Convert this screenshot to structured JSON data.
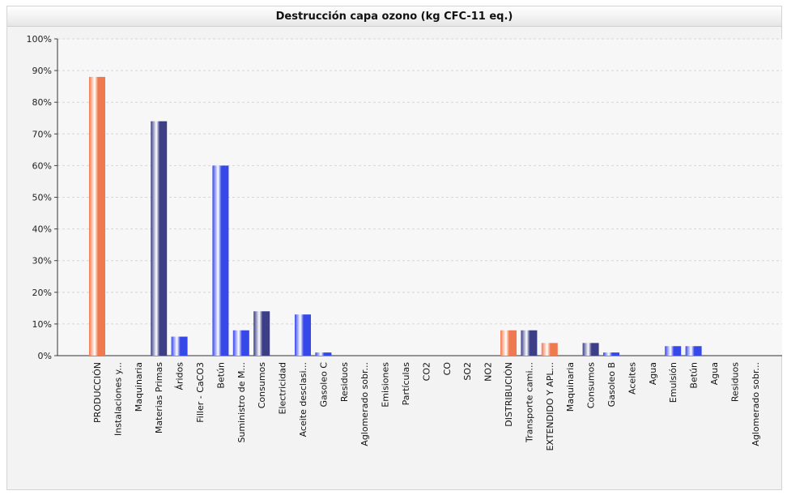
{
  "chart_data": {
    "type": "bar",
    "title": "Destrucción capa ozono (kg CFC-11 eq.)",
    "xlabel": "",
    "ylabel": "",
    "ylim": [
      0,
      100
    ],
    "y_ticks": [
      "0%",
      "10%",
      "20%",
      "30%",
      "40%",
      "50%",
      "60%",
      "70%",
      "80%",
      "90%",
      "100%"
    ],
    "grid": true,
    "legend": "none",
    "colors": {
      "orange": "#f07a50",
      "navy": "#3c3f86",
      "blue": "#3748e8",
      "lightblue": "#5079f2"
    },
    "categories": [
      "PRODUCCIÓN",
      "Instalaciones y...",
      "Maquinaria",
      "Materias Primas",
      "Áridos",
      "Filler - CaCO3",
      "Betún",
      "Suministro de M...",
      "Consumos",
      "Electricidad",
      "Aceite desclasi...",
      "Gasoleo C",
      "Residuos",
      "Aglomerado sobr...",
      "Emisiones",
      "Partículas",
      "CO2",
      "CO",
      "SO2",
      "NO2",
      "DISTRIBUCIÓN",
      "Transporte cami...",
      "EXTENDIDO Y APL...",
      "Maquinaria",
      "Consumos",
      "Gasoleo B",
      "Aceites",
      "Agua",
      "Emulsión",
      "Betún",
      "Agua",
      "Residuos",
      "Aglomerado sobr..."
    ],
    "values": [
      88,
      0,
      0,
      74,
      6,
      0,
      60,
      8,
      14,
      0,
      13,
      1,
      0,
      0,
      0,
      0,
      0,
      0,
      0,
      0,
      8,
      8,
      4,
      0,
      4,
      1,
      0,
      0,
      3,
      3,
      0,
      0,
      0
    ],
    "bar_colors": [
      "orange",
      "navy",
      "navy",
      "navy",
      "blue",
      "blue",
      "blue",
      "blue",
      "navy",
      "blue",
      "blue",
      "blue",
      "blue",
      "blue",
      "blue",
      "blue",
      "blue",
      "blue",
      "blue",
      "blue",
      "orange",
      "navy",
      "orange",
      "navy",
      "navy",
      "blue",
      "blue",
      "blue",
      "blue",
      "blue",
      "blue",
      "blue",
      "blue"
    ]
  }
}
